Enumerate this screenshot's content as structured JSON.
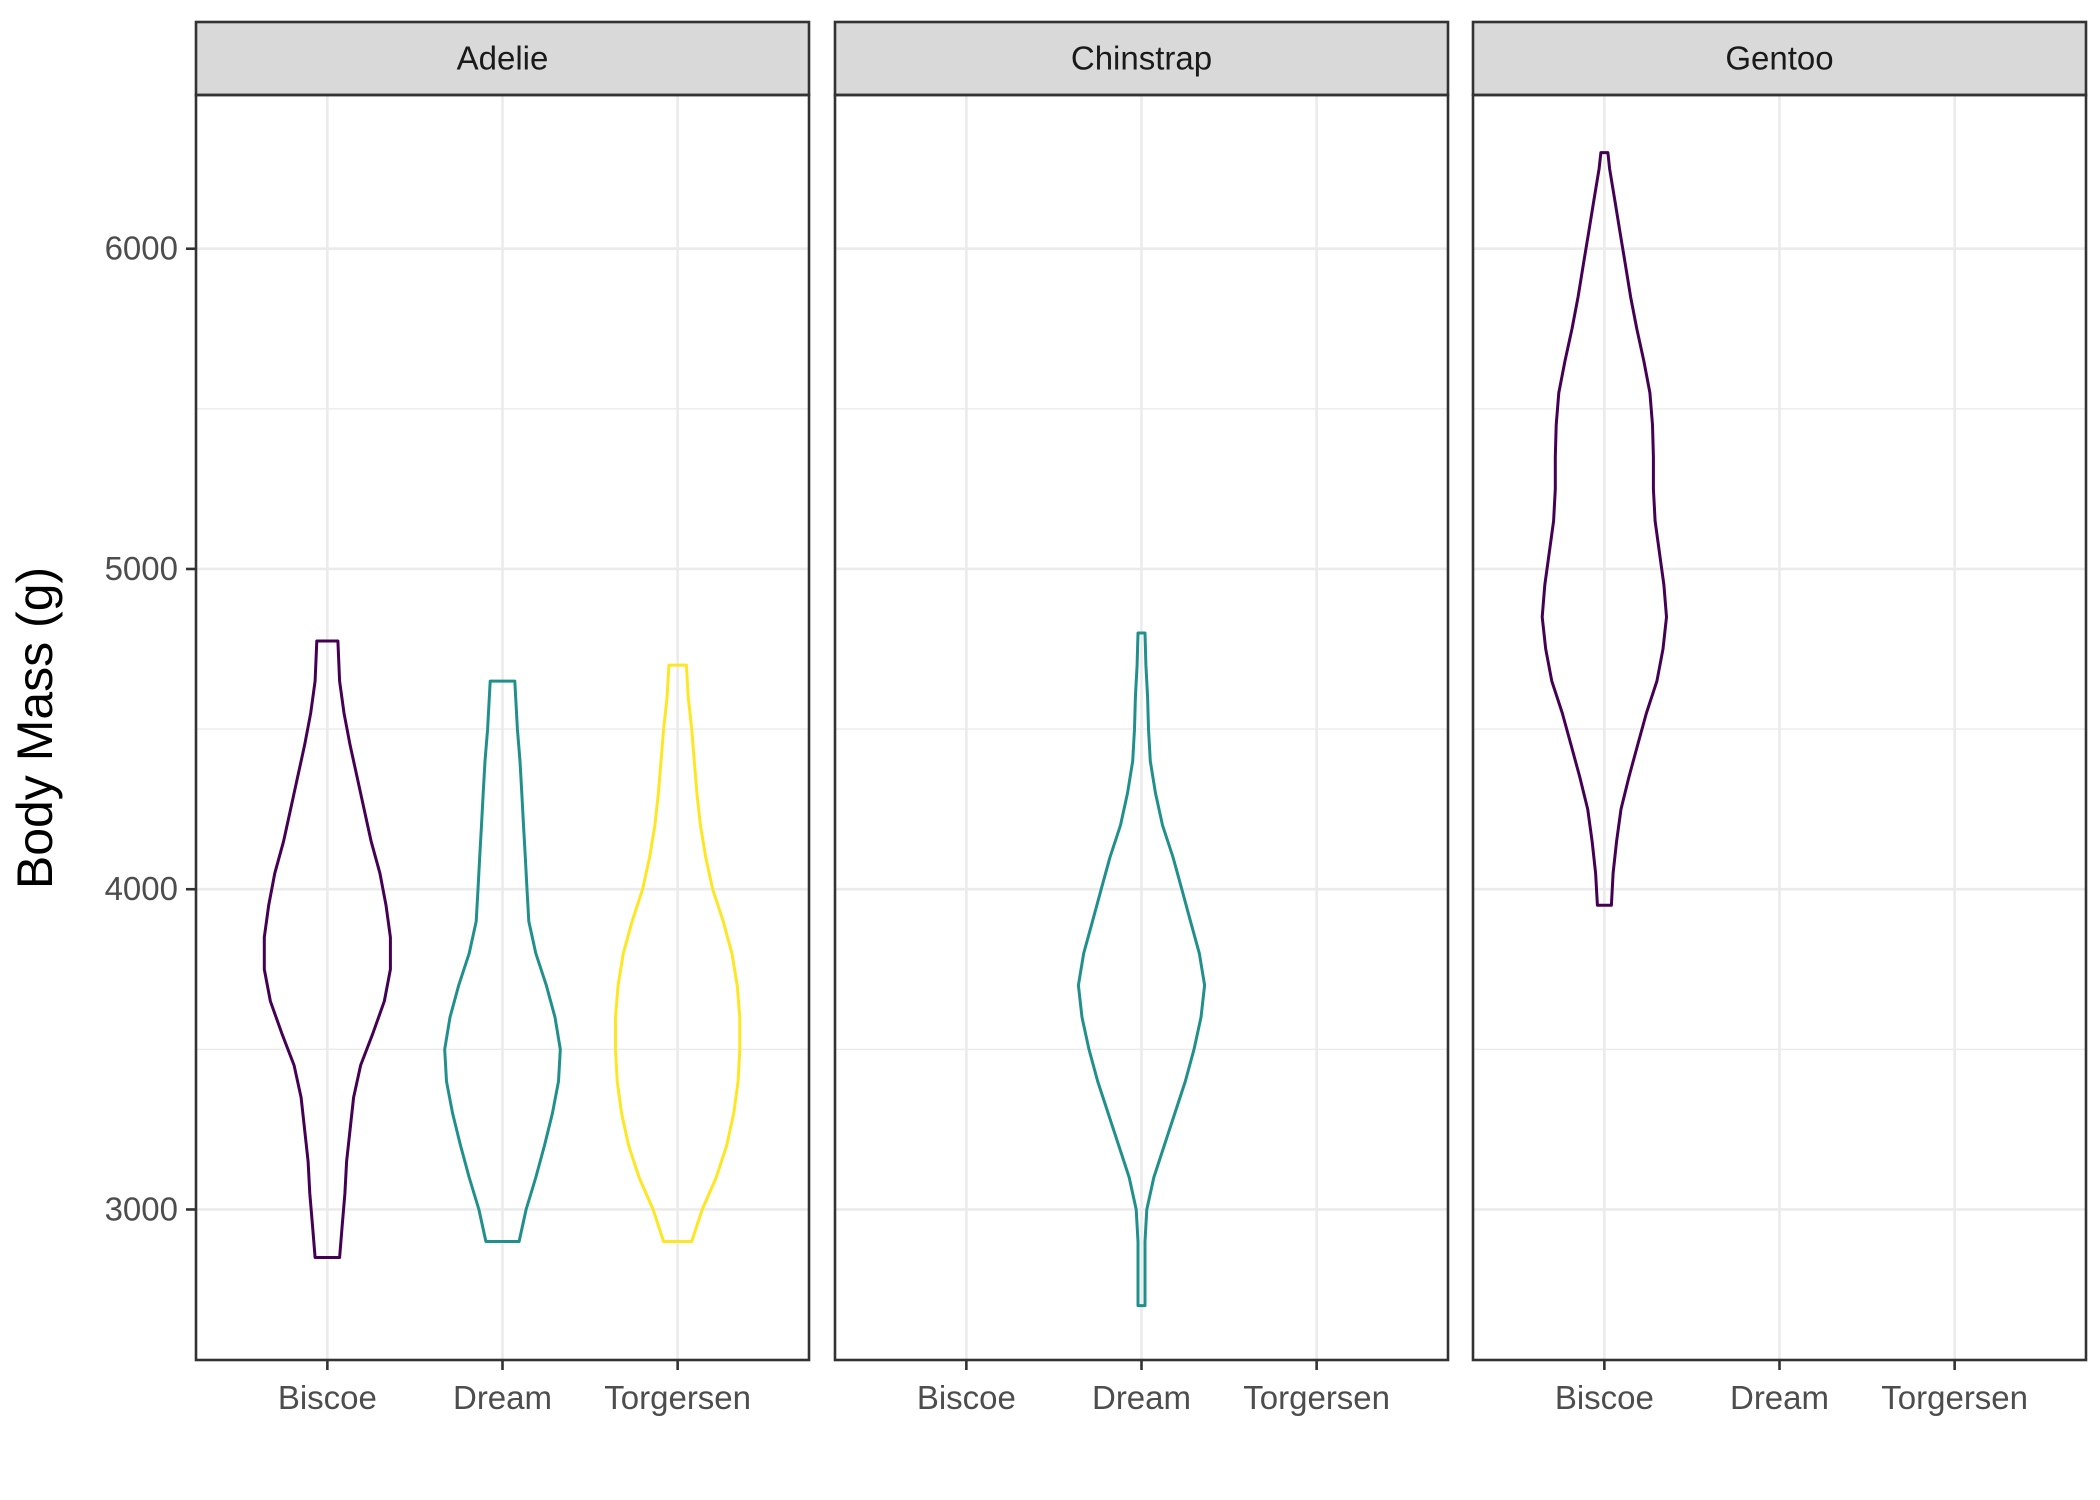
{
  "chart_data": {
    "type": "violin",
    "title": "",
    "xlabel": "",
    "ylabel": "Body Mass (g)",
    "ylim": [
      2530,
      6480
    ],
    "y_ticks": [
      3000,
      4000,
      5000,
      6000
    ],
    "y_minor_ticks": [
      3500,
      4500,
      5500
    ],
    "categories": [
      "Biscoe",
      "Dream",
      "Torgersen"
    ],
    "facets": [
      "Adelie",
      "Chinstrap",
      "Gentoo"
    ],
    "grid": true,
    "legend": "none",
    "colors": {
      "Biscoe": "#440154",
      "Dream": "#21908C",
      "Torgersen": "#FDE725",
      "panel_border": "#333333",
      "strip_fill": "#D9D9D9",
      "grid": "#EBEBEB"
    },
    "series": [
      {
        "facet": "Adelie",
        "category": "Biscoe",
        "min": 2850,
        "max": 4775,
        "profile": [
          [
            2850,
            0.14
          ],
          [
            2950,
            0.17
          ],
          [
            3050,
            0.2
          ],
          [
            3150,
            0.22
          ],
          [
            3250,
            0.26
          ],
          [
            3350,
            0.3
          ],
          [
            3450,
            0.38
          ],
          [
            3550,
            0.52
          ],
          [
            3650,
            0.65
          ],
          [
            3750,
            0.72
          ],
          [
            3850,
            0.72
          ],
          [
            3950,
            0.67
          ],
          [
            4050,
            0.6
          ],
          [
            4150,
            0.5
          ],
          [
            4250,
            0.42
          ],
          [
            4350,
            0.34
          ],
          [
            4450,
            0.26
          ],
          [
            4550,
            0.19
          ],
          [
            4650,
            0.14
          ],
          [
            4775,
            0.12
          ]
        ]
      },
      {
        "facet": "Adelie",
        "category": "Dream",
        "min": 2900,
        "max": 4650,
        "profile": [
          [
            2900,
            0.19
          ],
          [
            3000,
            0.27
          ],
          [
            3100,
            0.38
          ],
          [
            3200,
            0.48
          ],
          [
            3300,
            0.57
          ],
          [
            3400,
            0.64
          ],
          [
            3500,
            0.66
          ],
          [
            3600,
            0.6
          ],
          [
            3700,
            0.5
          ],
          [
            3800,
            0.38
          ],
          [
            3900,
            0.3
          ],
          [
            4000,
            0.28
          ],
          [
            4100,
            0.26
          ],
          [
            4200,
            0.24
          ],
          [
            4300,
            0.22
          ],
          [
            4400,
            0.2
          ],
          [
            4500,
            0.17
          ],
          [
            4650,
            0.14
          ]
        ]
      },
      {
        "facet": "Adelie",
        "category": "Torgersen",
        "min": 2900,
        "max": 4700,
        "profile": [
          [
            2900,
            0.16
          ],
          [
            3000,
            0.28
          ],
          [
            3100,
            0.44
          ],
          [
            3200,
            0.56
          ],
          [
            3300,
            0.64
          ],
          [
            3400,
            0.69
          ],
          [
            3500,
            0.71
          ],
          [
            3600,
            0.71
          ],
          [
            3700,
            0.68
          ],
          [
            3800,
            0.62
          ],
          [
            3900,
            0.52
          ],
          [
            4000,
            0.4
          ],
          [
            4100,
            0.32
          ],
          [
            4200,
            0.26
          ],
          [
            4300,
            0.22
          ],
          [
            4400,
            0.19
          ],
          [
            4500,
            0.16
          ],
          [
            4600,
            0.12
          ],
          [
            4700,
            0.1
          ]
        ]
      },
      {
        "facet": "Chinstrap",
        "category": "Dream",
        "min": 2700,
        "max": 4800,
        "profile": [
          [
            2700,
            0.04
          ],
          [
            2800,
            0.04
          ],
          [
            2900,
            0.04
          ],
          [
            3000,
            0.06
          ],
          [
            3100,
            0.14
          ],
          [
            3200,
            0.26
          ],
          [
            3300,
            0.38
          ],
          [
            3400,
            0.5
          ],
          [
            3500,
            0.6
          ],
          [
            3600,
            0.68
          ],
          [
            3700,
            0.72
          ],
          [
            3800,
            0.66
          ],
          [
            3900,
            0.56
          ],
          [
            4000,
            0.46
          ],
          [
            4100,
            0.36
          ],
          [
            4200,
            0.24
          ],
          [
            4300,
            0.16
          ],
          [
            4400,
            0.1
          ],
          [
            4500,
            0.08
          ],
          [
            4600,
            0.07
          ],
          [
            4700,
            0.05
          ],
          [
            4800,
            0.04
          ]
        ]
      },
      {
        "facet": "Gentoo",
        "category": "Biscoe",
        "min": 3950,
        "max": 6300,
        "profile": [
          [
            3950,
            0.08
          ],
          [
            4050,
            0.1
          ],
          [
            4150,
            0.14
          ],
          [
            4250,
            0.19
          ],
          [
            4350,
            0.28
          ],
          [
            4450,
            0.38
          ],
          [
            4550,
            0.48
          ],
          [
            4650,
            0.6
          ],
          [
            4750,
            0.67
          ],
          [
            4850,
            0.71
          ],
          [
            4950,
            0.68
          ],
          [
            5050,
            0.63
          ],
          [
            5150,
            0.58
          ],
          [
            5250,
            0.56
          ],
          [
            5350,
            0.56
          ],
          [
            5450,
            0.55
          ],
          [
            5550,
            0.52
          ],
          [
            5650,
            0.45
          ],
          [
            5750,
            0.37
          ],
          [
            5850,
            0.3
          ],
          [
            5950,
            0.24
          ],
          [
            6050,
            0.18
          ],
          [
            6150,
            0.12
          ],
          [
            6250,
            0.06
          ],
          [
            6300,
            0.04
          ]
        ]
      }
    ]
  }
}
